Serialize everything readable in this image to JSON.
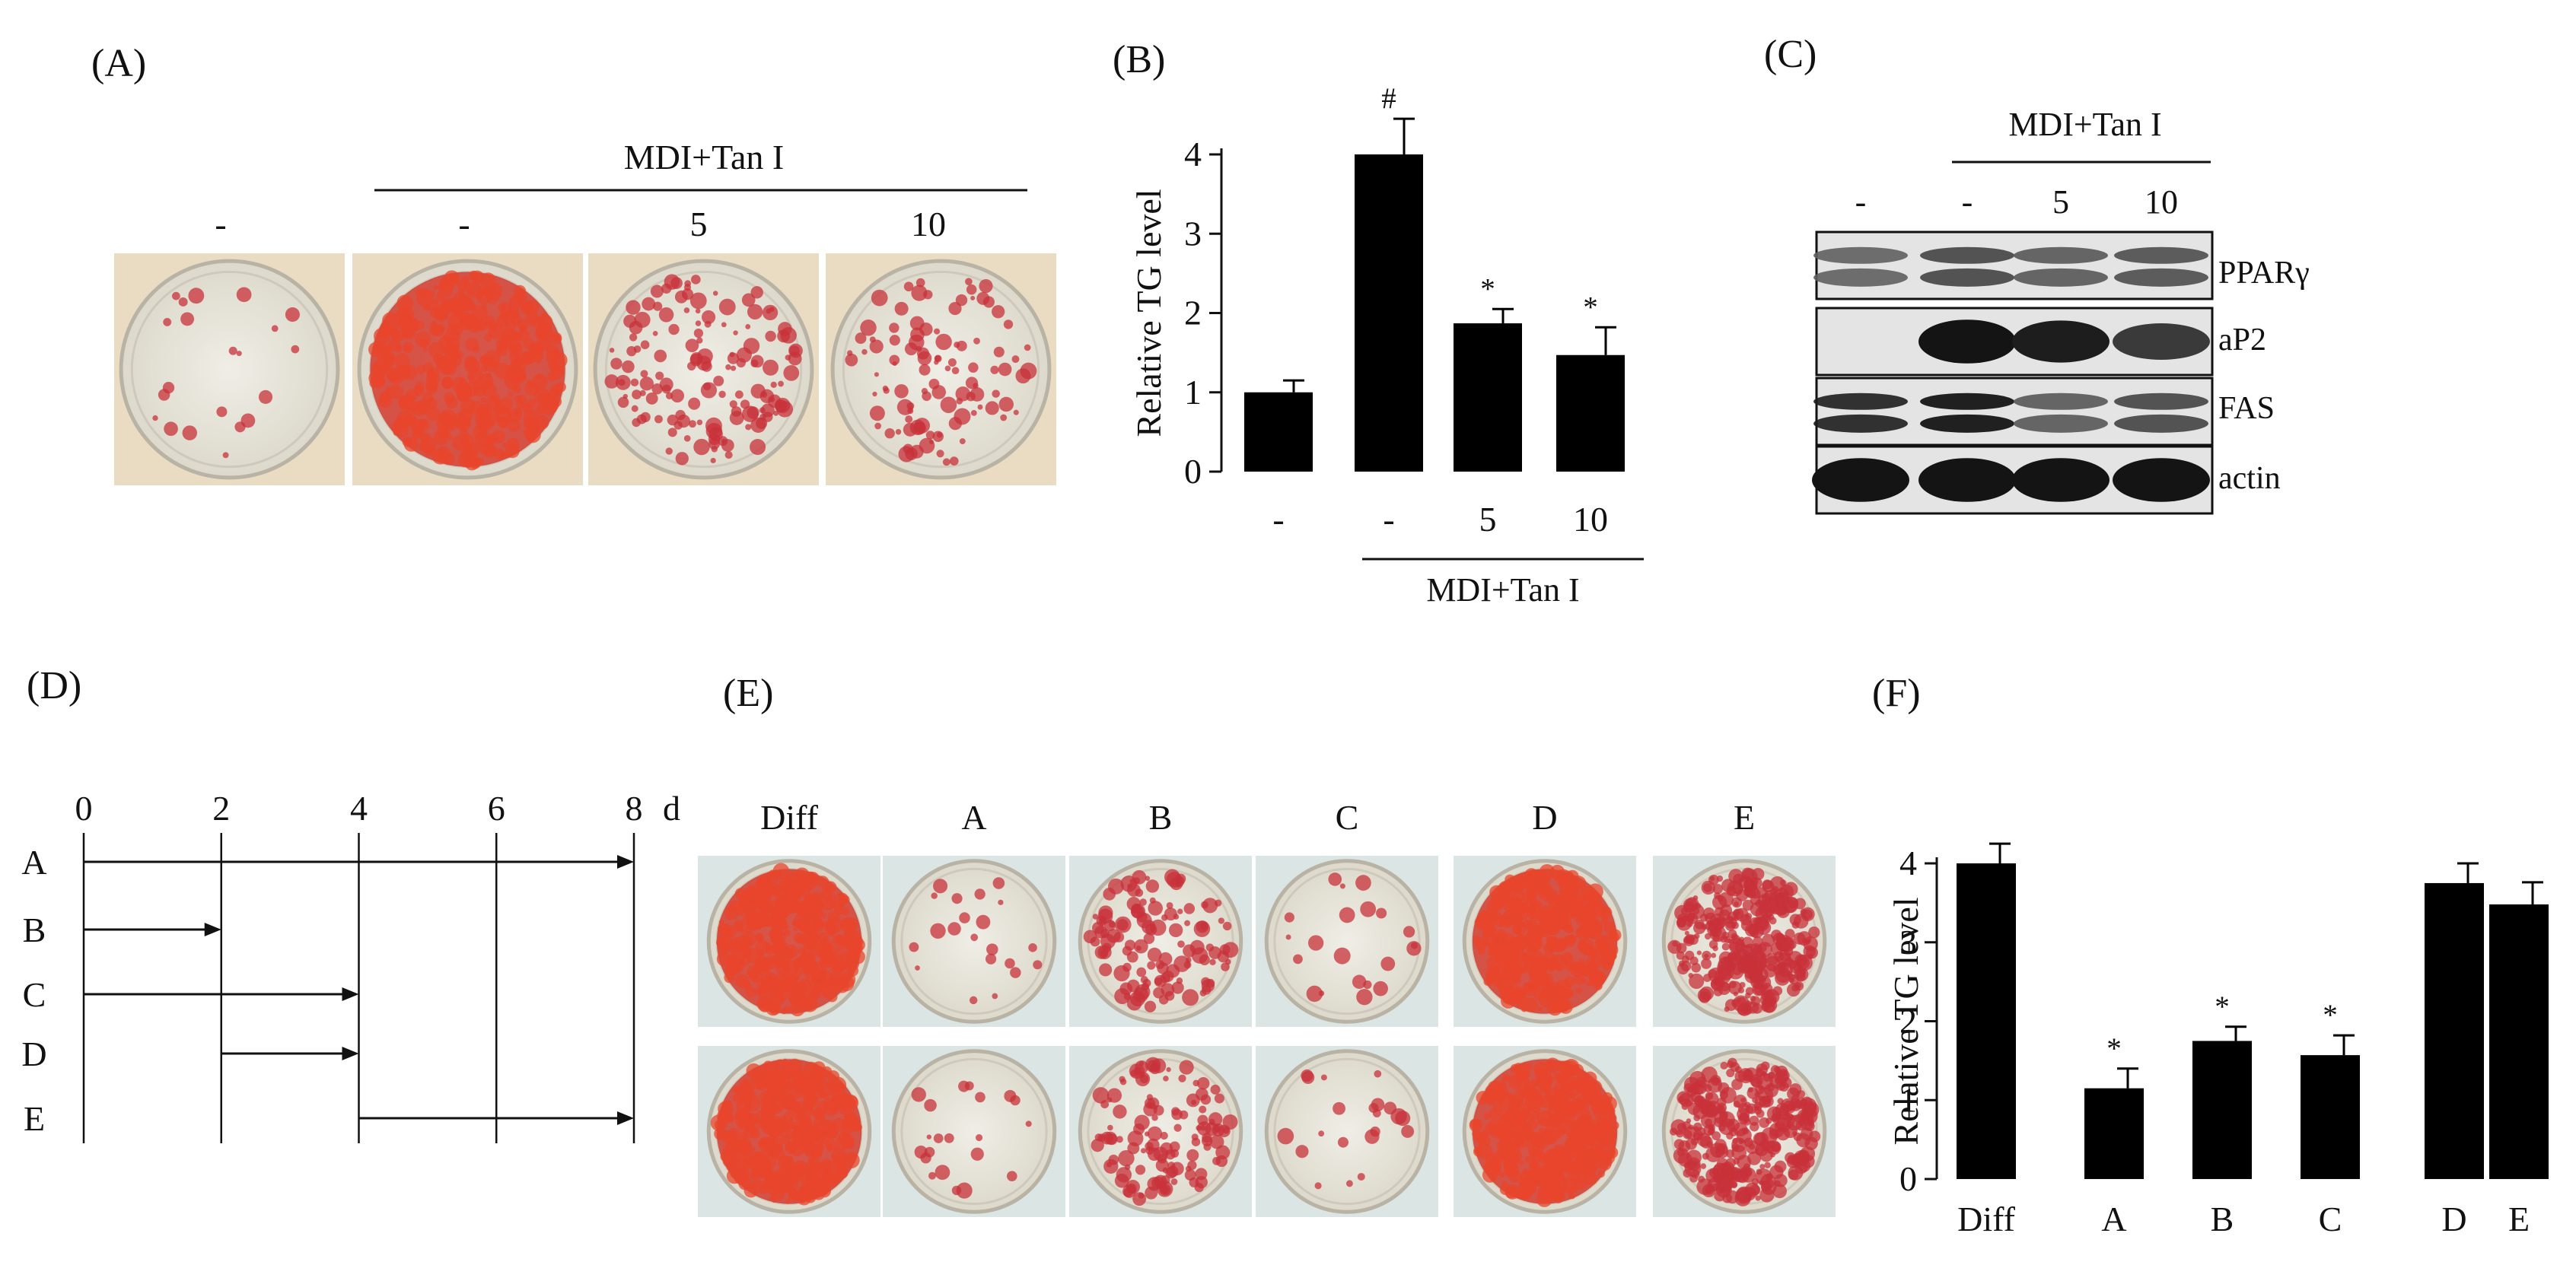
{
  "panel_labels": {
    "a": "(A)",
    "b": "(B)",
    "c": "(C)",
    "d": "(D)",
    "e": "(E)",
    "f": "(F)"
  },
  "panel_a": {
    "group_label": "MDI+Tan I",
    "columns": [
      "-",
      "-",
      "5",
      "10"
    ],
    "stain_intensity": [
      0.05,
      0.95,
      0.35,
      0.25
    ]
  },
  "panel_c": {
    "group_label": "MDI+Tan I",
    "columns": [
      "-",
      "-",
      "5",
      "10"
    ],
    "bands": [
      "PPARγ",
      "aP2",
      "FAS",
      "actin"
    ]
  },
  "panel_d": {
    "day_ticks": [
      "0",
      "2",
      "4",
      "6",
      "8"
    ],
    "unit": "d",
    "rows": [
      {
        "label": "A",
        "start_day": 0,
        "end_day": 8
      },
      {
        "label": "B",
        "start_day": 0,
        "end_day": 2
      },
      {
        "label": "C",
        "start_day": 0,
        "end_day": 4
      },
      {
        "label": "D",
        "start_day": 2,
        "end_day": 4
      },
      {
        "label": "E",
        "start_day": 4,
        "end_day": 8
      }
    ]
  },
  "panel_e": {
    "columns": [
      "Diff",
      "A",
      "B",
      "C",
      "D",
      "E"
    ],
    "stain_intensity": [
      0.9,
      0.05,
      0.3,
      0.05,
      0.9,
      0.8
    ]
  },
  "chart_data": [
    {
      "type": "bar",
      "panel": "B",
      "ylabel": "Relative TG level",
      "ylim": [
        0,
        4
      ],
      "yticks": [
        "0",
        "1",
        "2",
        "3",
        "4"
      ],
      "categories": [
        "-",
        "-",
        "5",
        "10"
      ],
      "values": [
        1.0,
        4.0,
        1.87,
        1.47
      ],
      "errors": [
        0.15,
        0.45,
        0.18,
        0.35
      ],
      "significance": [
        "",
        "#",
        "*",
        "*"
      ],
      "group_label": "MDI+Tan I"
    },
    {
      "type": "bar",
      "panel": "F",
      "ylabel": "Relative TG level",
      "ylim": [
        0,
        4
      ],
      "yticks": [
        "0",
        "1",
        "2",
        "3",
        "4"
      ],
      "categories": [
        "Diff",
        "A",
        "B",
        "C",
        "D",
        "E"
      ],
      "values": [
        4.0,
        1.15,
        1.75,
        1.57,
        3.75,
        3.48
      ],
      "errors": [
        0.25,
        0.25,
        0.18,
        0.25,
        0.25,
        0.28
      ],
      "significance": [
        "",
        "*",
        "*",
        "*",
        "",
        ""
      ]
    }
  ]
}
